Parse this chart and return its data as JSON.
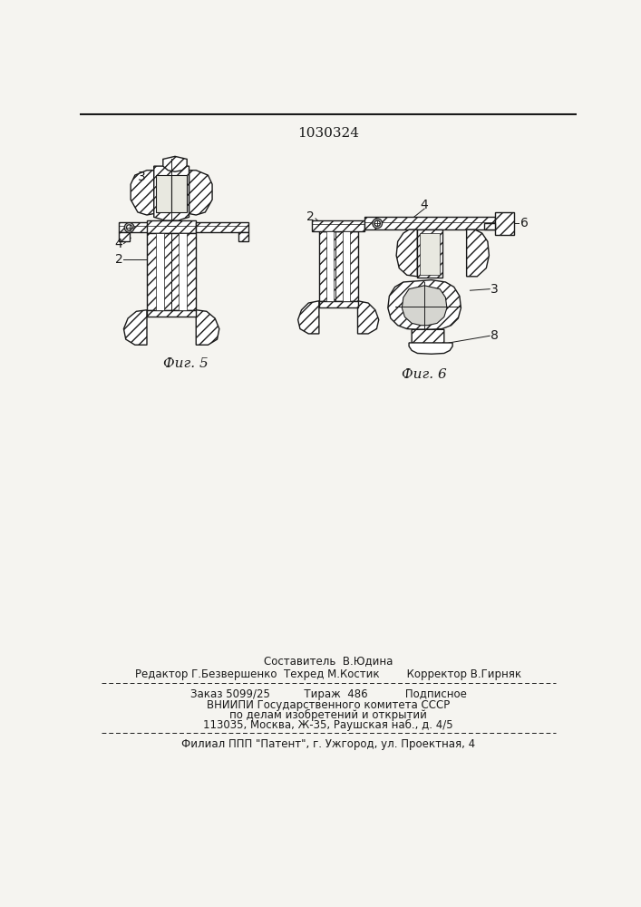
{
  "patent_number": "1030324",
  "background_color": "#f5f4f0",
  "fig5_label": "Фиг. 5",
  "fig6_label": "Фиг. 6",
  "footer_line1": "Составитель  В.Юдина",
  "footer_line2": "Редактор Г.Безвершенко  Техред М.Костик        Корректор В.Гирняк",
  "footer_line3": "Заказ 5099/25          Тираж  486           Подписное",
  "footer_line4": "ВНИИПИ Государственного комитета СССР",
  "footer_line5": "по делам изобретений и открытий",
  "footer_line6": "113035, Москва, Ж-35, Раушская наб., д. 4/5",
  "footer_line7": "Филиал ППП \"Патент\", г. Ужгород, ул. Проектная, 4",
  "text_color": "#1a1a1a",
  "line_color": "#1a1a1a",
  "hatch_lw": 0.6
}
